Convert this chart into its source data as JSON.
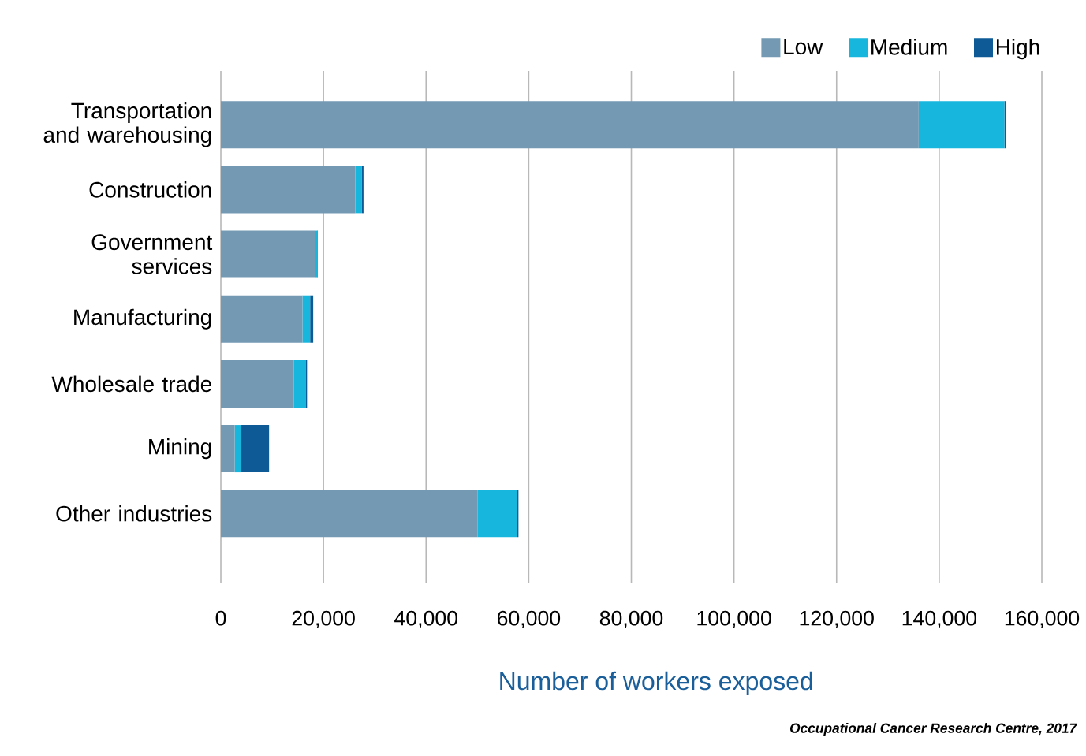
{
  "chart_data": {
    "type": "bar",
    "orientation": "horizontal",
    "stacked": true,
    "categories": [
      "Transportation and warehousing",
      "Construction",
      "Government services",
      "Manufacturing",
      "Wholesale trade",
      "Mining",
      "Other industries"
    ],
    "series": [
      {
        "name": "Low",
        "color": "#7399b3",
        "values": [
          136000,
          26200,
          18300,
          15900,
          14200,
          2700,
          50000
        ]
      },
      {
        "name": "Medium",
        "color": "#17b6dd",
        "values": [
          16700,
          1300,
          500,
          1500,
          2400,
          1300,
          7700
        ]
      },
      {
        "name": "High",
        "color": "#0d5a96",
        "values": [
          300,
          300,
          100,
          600,
          200,
          5400,
          300
        ]
      }
    ],
    "xlabel": "Number of workers exposed",
    "xlim": [
      0,
      160000
    ],
    "xticks": [
      0,
      {
        "value": 20000,
        "label": "20,000"
      },
      {
        "value": 40000,
        "label": "40,000"
      },
      {
        "value": 60000,
        "label": "60,000"
      },
      {
        "value": 80000,
        "label": "80,000"
      },
      {
        "value": 100000,
        "label": "100,000"
      },
      {
        "value": 120000,
        "label": "120,000"
      },
      {
        "value": 140000,
        "label": "140,000"
      },
      {
        "value": 160000,
        "label": "160,000"
      }
    ],
    "grid": "x",
    "legend": "top right",
    "annotations": [
      "Occupational Cancer Research Centre, 2017"
    ]
  }
}
